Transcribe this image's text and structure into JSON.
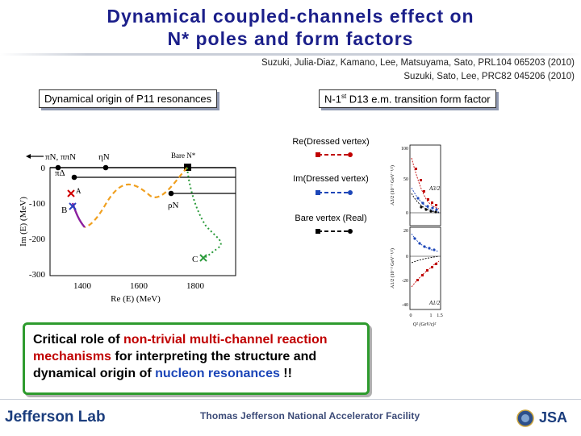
{
  "title": {
    "line1": "Dynamical coupled-channels effect on",
    "line2": "N* poles and form factors"
  },
  "references": {
    "ref1": "Suzuki, Julia-Diaz, Kamano, Lee, Matsuyama, Sato, PRL104 065203 (2010)",
    "ref2": "Suzuki, Sato, Lee, PRC82 045206 (2010)"
  },
  "left_panel": {
    "label": "Dynamical origin of P11 resonances"
  },
  "right_panel": {
    "label_prefix": "N-1",
    "label_sup": "st",
    "label_suffix": " D13 e.m. transition form factor"
  },
  "legend": {
    "re_label": "Re(Dressed vertex)",
    "im_label": "Im(Dressed vertex)",
    "bare_label": "Bare vertex (Real)",
    "re_color": "#c00000",
    "im_color": "#1c46b8",
    "bare_color": "#000000"
  },
  "pole_plot": {
    "channels": {
      "pin": "πN, ππN",
      "eta_n": "ηN",
      "bare": "Bare N*",
      "pi_delta": "πΔ",
      "rho_n": "ρN"
    },
    "pole_labels": {
      "a": "A",
      "b": "B",
      "c": "C"
    },
    "xlabel": "Re (E) (MeV)",
    "ylabel": "Im (E) (MeV)",
    "xticks": [
      "1400",
      "1600",
      "1800"
    ],
    "yticks": [
      "0",
      "-100",
      "-200",
      "-300"
    ]
  },
  "ff_plot": {
    "top_label": "A3/2",
    "bottom_label": "A1/2",
    "ylabel_top": "A3/2 (10⁻³ GeV⁻¹/²)",
    "ylabel_bottom": "A1/2 (10⁻³ GeV⁻¹/²)",
    "xlabel": "Q² (GeV/c)²",
    "xticks": [
      "0",
      "1",
      "1.5"
    ],
    "yticks_top": [
      "100",
      "50",
      "0"
    ],
    "yticks_bottom": [
      "20",
      "0",
      "-20",
      "-40"
    ]
  },
  "conclusion": {
    "t1": "Critical role of ",
    "t2": "non-trivial multi-channel reaction mechanisms",
    "t3": " for interpreting the structure and dynamical origin of ",
    "t4": "nucleon resonances",
    "t5": " !!"
  },
  "footer": {
    "logo_left": "Jefferson Lab",
    "facility": "Thomas Jefferson National Accelerator Facility",
    "logo_right": "JSA"
  }
}
